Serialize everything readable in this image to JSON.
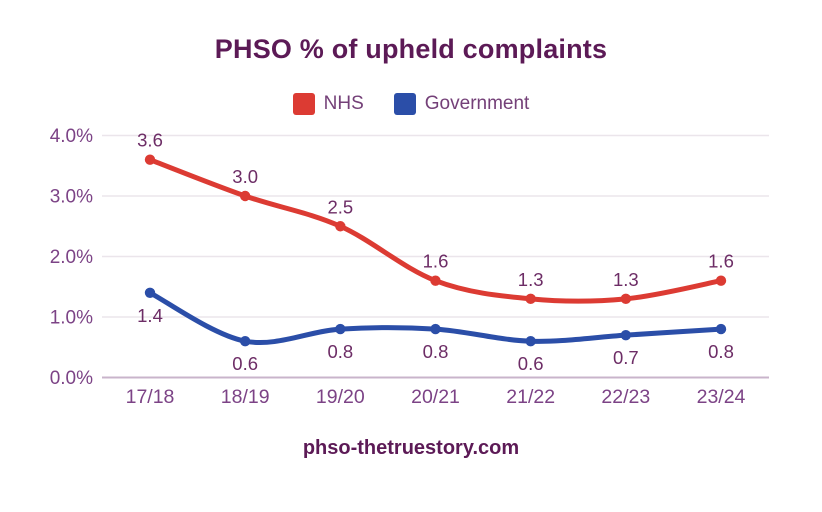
{
  "title": "PHSO % of upheld complaints",
  "footer": "phso-thetruestory.com",
  "colors": {
    "background": "#ffffff",
    "title": "#5c1a56",
    "footer": "#5c1a56",
    "legend_label": "#744078",
    "axis_label": "#7c4386",
    "data_label": "#6d2d66",
    "gridline": "#ebe5eb",
    "axis_line": "#c9b4cb",
    "nhs": "#dc3b33",
    "government": "#2b4ea8"
  },
  "legend": {
    "items": [
      {
        "label": "NHS",
        "color": "#dc3b33"
      },
      {
        "label": "Government",
        "color": "#2b4ea8"
      }
    ]
  },
  "chart_data": {
    "type": "line",
    "title": "PHSO % of upheld complaints",
    "categories": [
      "17/18",
      "18/19",
      "19/20",
      "20/21",
      "21/22",
      "22/23",
      "23/24"
    ],
    "series": [
      {
        "name": "NHS",
        "color": "#dc3b33",
        "values": [
          3.6,
          3.0,
          2.5,
          1.6,
          1.3,
          1.3,
          1.6
        ],
        "data_labels": [
          "3.6",
          "3.0",
          "2.5",
          "1.6",
          "1.3",
          "1.3",
          "1.6"
        ],
        "label_position": "above"
      },
      {
        "name": "Government",
        "color": "#2b4ea8",
        "values": [
          1.4,
          0.6,
          0.8,
          0.8,
          0.6,
          0.7,
          0.8
        ],
        "data_labels": [
          "1.4",
          "0.6",
          "0.8",
          "0.8",
          "0.6",
          "0.7",
          "0.8"
        ],
        "label_position": "below"
      }
    ],
    "xlabel": "",
    "ylabel": "",
    "ylim": [
      0,
      4
    ],
    "ytick_step": 1,
    "yticks": [
      "0.0%",
      "1.0%",
      "2.0%",
      "3.0%",
      "4.0%"
    ],
    "grid": true,
    "line_style": "smooth",
    "markers": true,
    "legend_position": "top"
  }
}
